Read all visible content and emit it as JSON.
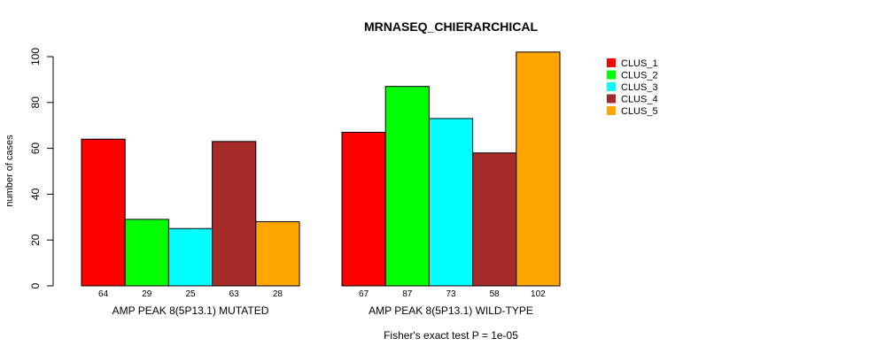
{
  "chart_data": {
    "type": "bar",
    "title": "MRNASEQ_CHIERARCHICAL",
    "ylabel": "number of cases",
    "xlabel": "",
    "footnote": "Fisher's exact test P = 1e-05",
    "ylim": [
      0,
      100
    ],
    "yticks": [
      0,
      20,
      40,
      60,
      80,
      100
    ],
    "grid": false,
    "legend_position": "top-right",
    "categories": [
      "AMP PEAK  8(5P13.1) MUTATED",
      "AMP PEAK  8(5P13.1) WILD-TYPE"
    ],
    "series": [
      {
        "name": "CLUS_1",
        "color": "#ff0000",
        "values": [
          64,
          67
        ]
      },
      {
        "name": "CLUS_2",
        "color": "#00ff00",
        "values": [
          29,
          87
        ]
      },
      {
        "name": "CLUS_3",
        "color": "#00ffff",
        "values": [
          25,
          73
        ]
      },
      {
        "name": "CLUS_4",
        "color": "#a52a2a",
        "values": [
          63,
          58
        ]
      },
      {
        "name": "CLUS_5",
        "color": "#ffa500",
        "values": [
          28,
          102
        ]
      }
    ]
  }
}
